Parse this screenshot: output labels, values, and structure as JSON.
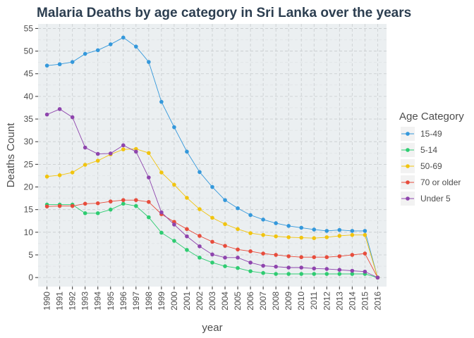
{
  "chart_data": {
    "type": "line",
    "title": "Malaria Deaths by age category in Sri Lanka over the years",
    "xlabel": "year",
    "ylabel": "Deaths Count",
    "legend_title": "Age Category",
    "legend_position": "right",
    "grid": true,
    "x": [
      1990,
      1991,
      1992,
      1993,
      1994,
      1995,
      1996,
      1997,
      1998,
      1999,
      2000,
      2001,
      2002,
      2003,
      2004,
      2005,
      2006,
      2007,
      2008,
      2009,
      2010,
      2011,
      2012,
      2013,
      2014,
      2015,
      2016
    ],
    "x_tick_labels": [
      "1990",
      "1991",
      "1992",
      "1993",
      "1994",
      "1995",
      "1996",
      "1997",
      "1998",
      "1999",
      "2000",
      "2001",
      "2002",
      "2003",
      "2004",
      "2005",
      "2006",
      "2007",
      "2008",
      "2009",
      "2010",
      "2011",
      "2012",
      "2013",
      "2014",
      "2015",
      "2016"
    ],
    "xlim": [
      1989.3,
      2016.7
    ],
    "ylim": [
      -2,
      56
    ],
    "y_ticks": [
      0,
      5,
      10,
      15,
      20,
      25,
      30,
      35,
      40,
      45,
      50,
      55
    ],
    "y_tick_labels": [
      "0",
      "5",
      "10",
      "15",
      "20",
      "25",
      "30",
      "35",
      "40",
      "45",
      "50",
      "55"
    ],
    "series": [
      {
        "name": "15-49",
        "color": "#3498db",
        "values": [
          46.8,
          47.1,
          47.6,
          49.4,
          50.2,
          51.5,
          53.0,
          51.0,
          47.6,
          38.8,
          33.2,
          27.8,
          23.3,
          20.0,
          17.1,
          15.3,
          13.8,
          12.8,
          12.0,
          11.4,
          11.0,
          10.6,
          10.3,
          10.5,
          10.3,
          10.3,
          0
        ]
      },
      {
        "name": "5-14",
        "color": "#2ecc71",
        "values": [
          16.1,
          16.1,
          16.1,
          14.2,
          14.2,
          15.0,
          16.3,
          15.8,
          13.3,
          9.9,
          8.1,
          6.1,
          4.4,
          3.3,
          2.5,
          2.1,
          1.4,
          1.0,
          0.8,
          0.8,
          0.8,
          0.8,
          0.8,
          0.8,
          0.8,
          0.8,
          0
        ]
      },
      {
        "name": "50-69",
        "color": "#f1c40f",
        "values": [
          22.3,
          22.6,
          23.2,
          24.9,
          25.8,
          27.2,
          28.3,
          28.4,
          27.5,
          23.2,
          20.5,
          17.6,
          15.1,
          13.2,
          11.8,
          10.7,
          9.8,
          9.4,
          9.1,
          8.9,
          8.8,
          8.7,
          8.9,
          9.2,
          9.4,
          9.4,
          0
        ]
      },
      {
        "name": "70 or older",
        "color": "#e74c3c",
        "values": [
          15.7,
          15.8,
          15.8,
          16.3,
          16.4,
          16.8,
          17.1,
          17.1,
          16.7,
          14.0,
          12.3,
          10.7,
          9.2,
          7.9,
          7.0,
          6.2,
          5.8,
          5.3,
          5.0,
          4.7,
          4.5,
          4.5,
          4.5,
          4.7,
          5.0,
          5.3,
          0
        ]
      },
      {
        "name": "Under 5",
        "color": "#8e44ad",
        "values": [
          36.0,
          37.2,
          35.4,
          28.7,
          27.3,
          27.4,
          29.2,
          27.8,
          22.1,
          14.4,
          11.7,
          9.1,
          6.9,
          5.1,
          4.4,
          4.4,
          3.3,
          2.6,
          2.4,
          2.2,
          2.2,
          2.0,
          1.9,
          1.7,
          1.5,
          1.3,
          0
        ]
      }
    ]
  }
}
